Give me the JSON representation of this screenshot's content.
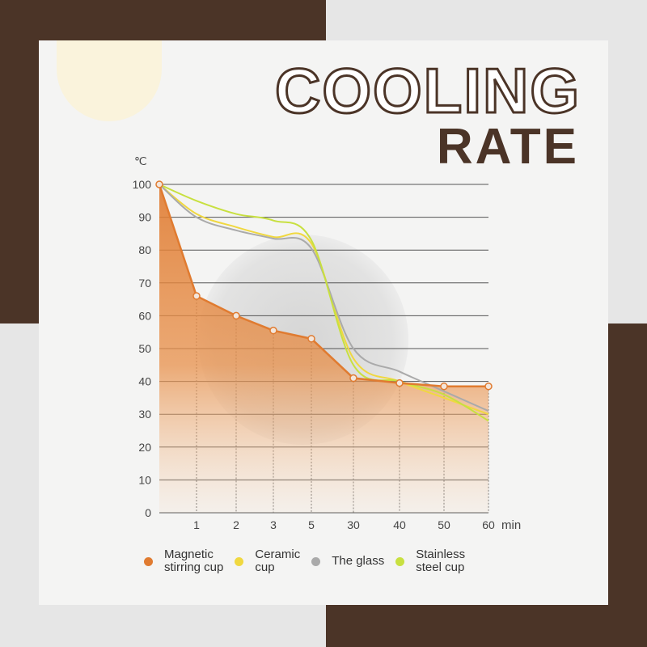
{
  "header": {
    "title_line1": "COOLING",
    "title_line2": "RATE"
  },
  "colors": {
    "brand_brown": "#4b3427"
  },
  "chart_data": {
    "type": "line",
    "ylabel": "℃",
    "xlabel": "min",
    "categories": [
      "0",
      "1",
      "2",
      "3",
      "5",
      "30",
      "40",
      "50",
      "60"
    ],
    "tick_labels_x": [
      "1",
      "2",
      "3",
      "5",
      "30",
      "40",
      "50",
      "60"
    ],
    "yticks": [
      0,
      10,
      20,
      30,
      40,
      50,
      60,
      70,
      80,
      90,
      100
    ],
    "ylim": [
      0,
      100
    ],
    "grid": true,
    "legend_position": "bottom",
    "series": [
      {
        "name": "Magnetic stirring cup",
        "legend_lines": [
          "Magnetic",
          "stirring cup"
        ],
        "color": "#e07b30",
        "fill": true,
        "markers": true,
        "values": [
          100,
          66,
          60,
          55.5,
          53,
          41,
          39.5,
          38.5,
          38.5
        ]
      },
      {
        "name": "Ceramic cup",
        "legend_lines": [
          "Ceramic",
          "cup"
        ],
        "color": "#f0d840",
        "values": [
          100,
          91,
          87,
          84,
          82,
          47,
          40,
          35,
          30
        ]
      },
      {
        "name": "The glass",
        "legend_lines": [
          "The glass"
        ],
        "color": "#aaaaaa",
        "values": [
          100,
          90,
          86,
          83.5,
          80.5,
          50,
          43,
          37,
          31
        ]
      },
      {
        "name": "Stainless steel cup",
        "legend_lines": [
          "Stainless",
          "steel cup"
        ],
        "color": "#c8e040",
        "values": [
          100,
          95,
          91,
          89,
          83,
          45,
          40,
          36,
          28
        ]
      }
    ]
  }
}
